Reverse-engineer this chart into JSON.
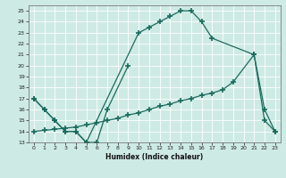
{
  "xlabel": "Humidex (Indice chaleur)",
  "bg_color": "#ceeae4",
  "line_color": "#1a6b5e",
  "grid_color": "#b8d8d2",
  "xlim": [
    -0.5,
    23.5
  ],
  "ylim": [
    13,
    25.5
  ],
  "yticks": [
    13,
    14,
    15,
    16,
    17,
    18,
    19,
    20,
    21,
    22,
    23,
    24,
    25
  ],
  "xticks": [
    0,
    1,
    2,
    3,
    4,
    5,
    6,
    7,
    8,
    9,
    10,
    11,
    12,
    13,
    14,
    15,
    16,
    17,
    18,
    19,
    20,
    21,
    22,
    23
  ],
  "line1_x": [
    0,
    1,
    2,
    3,
    4,
    5,
    6,
    7,
    9
  ],
  "line1_y": [
    17,
    16,
    15,
    14,
    14,
    13,
    13,
    16,
    20
  ],
  "line2_x": [
    0,
    1,
    2,
    3,
    4,
    5,
    10,
    11,
    12,
    13,
    14,
    15,
    16,
    17,
    21,
    22,
    23
  ],
  "line2_y": [
    17,
    16,
    15,
    14,
    14,
    13,
    23,
    23.5,
    24,
    24.5,
    25,
    25,
    24,
    22.5,
    21,
    16,
    14
  ],
  "line3_x": [
    0,
    1,
    2,
    3,
    4,
    5,
    6,
    7,
    8,
    9,
    10,
    11,
    12,
    13,
    14,
    15,
    16,
    17,
    18,
    19,
    21,
    22,
    23
  ],
  "line3_y": [
    14.0,
    14.1,
    14.2,
    14.3,
    14.4,
    14.6,
    14.8,
    15.0,
    15.2,
    15.5,
    15.7,
    16.0,
    16.3,
    16.5,
    16.8,
    17.0,
    17.3,
    17.5,
    17.8,
    18.5,
    21.0,
    15.0,
    14.0
  ]
}
